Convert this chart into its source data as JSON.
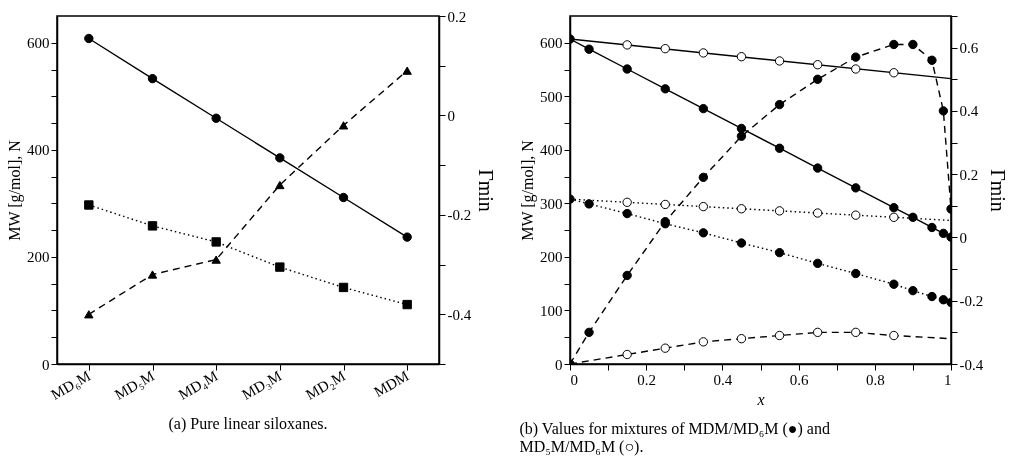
{
  "chart_data": [
    {
      "type": "line",
      "categories": [
        "MD₆M",
        "MD₅M",
        "MD₄M",
        "MD₃M",
        "MD₂M",
        "MDM"
      ],
      "ylabel": "MW [g/mol], N",
      "y2label": "Γmin",
      "ylim": [
        0,
        650
      ],
      "yticks": [
        0,
        {
          "value": 50,
          "label": null
        },
        200,
        {
          "value": 100,
          "label": null
        },
        {
          "value": 150,
          "label": null
        },
        {
          "value": 250,
          "label": null
        },
        {
          "value": 300,
          "label": null
        },
        {
          "value": 350,
          "label": null
        },
        400,
        {
          "value": 450,
          "label": null
        },
        {
          "value": 500,
          "label": null
        },
        {
          "value": 550,
          "label": null
        },
        600
      ],
      "y2lim": [
        -0.5,
        0.2
      ],
      "y2ticks": [
        {
          "value": -0.5,
          "label": null
        },
        -0.4,
        {
          "value": -0.3,
          "label": null
        },
        -0.2,
        {
          "value": -0.1,
          "label": null
        },
        0,
        {
          "value": 0.1,
          "label": null
        },
        0.2
      ],
      "grid": false,
      "annotations": [
        "(a) Pure linear siloxanes."
      ],
      "series": [
        {
          "color": "#000000",
          "marker": "circle",
          "line_style": "solid",
          "values": [
            608,
            533,
            459,
            385,
            311,
            237
          ]
        },
        {
          "color": "#000000",
          "marker": "square",
          "line_style": "dotted",
          "values": [
            297,
            258,
            228,
            181,
            143,
            111
          ]
        },
        {
          "color": "#000000",
          "marker": "triangle",
          "line_style": "dashed",
          "axis": "y2",
          "values": [
            -0.4,
            -0.32,
            -0.29,
            -0.14,
            -0.02,
            0.09
          ]
        }
      ]
    },
    {
      "type": "line",
      "xlabel": "x",
      "ylabel": "MW [g/mol], N",
      "y2label": "Γmin",
      "xlim": [
        0,
        1
      ],
      "xticks": [
        0,
        {
          "value": 0.1,
          "label": null
        },
        0.2,
        {
          "value": 0.3,
          "label": null
        },
        0.4,
        {
          "value": 0.5,
          "label": null
        },
        0.6,
        {
          "value": 0.7,
          "label": null
        },
        0.8,
        {
          "value": 0.9,
          "label": null
        },
        1
      ],
      "ylim": [
        0,
        650
      ],
      "yticks": [
        0,
        {
          "value": 50,
          "label": null
        },
        100,
        {
          "value": 150,
          "label": null
        },
        200,
        {
          "value": 250,
          "label": null
        },
        300,
        {
          "value": 350,
          "label": null
        },
        400,
        {
          "value": 450,
          "label": null
        },
        500,
        {
          "value": 550,
          "label": null
        },
        600
      ],
      "y2lim": [
        -0.4,
        0.7
      ],
      "y2ticks": [
        -0.4,
        {
          "value": -0.3,
          "label": null
        },
        -0.2,
        {
          "value": -0.1,
          "label": null
        },
        0,
        {
          "value": 0.1,
          "label": null
        },
        0.2,
        {
          "value": 0.3,
          "label": null
        },
        0.4,
        {
          "value": 0.5,
          "label": null
        },
        0.6,
        {
          "value": 0.7,
          "label": null
        }
      ],
      "grid": false,
      "annotations": [
        "(b) Values for mixtures of MDM/MD₆M (●) and MD₅M/MD₆M (○)."
      ],
      "series": [
        {
          "color": "#000000",
          "marker": "circle",
          "line_style": "solid",
          "x": [
            0,
            0.05,
            0.15,
            0.25,
            0.35,
            0.45,
            0.55,
            0.65,
            0.75,
            0.85,
            0.9,
            0.95,
            0.98,
            1
          ],
          "values": [
            607,
            588,
            551,
            514,
            477,
            440,
            403,
            366,
            329,
            292,
            274,
            255,
            244,
            237
          ]
        },
        {
          "color": "#000000",
          "marker": "none",
          "line_style": "solid",
          "x": [
            0,
            1
          ],
          "values": [
            607,
            533
          ]
        },
        {
          "type": "scatter",
          "color": "#ffffff",
          "marker": "circle",
          "x": [
            0.15,
            0.25,
            0.35,
            0.45,
            0.55,
            0.65,
            0.75,
            0.85
          ],
          "values": [
            596,
            589,
            581,
            574,
            566,
            559,
            551,
            544
          ]
        },
        {
          "color": "#000000",
          "marker": "circle",
          "line_style": "dotted",
          "x": [
            0,
            0.05,
            0.15,
            0.25,
            0.35,
            0.45,
            0.55,
            0.65,
            0.75,
            0.85,
            0.9,
            0.95,
            0.98,
            1
          ],
          "values": [
            308,
            299,
            281,
            262,
            245,
            226,
            208,
            188,
            169,
            149,
            137,
            126,
            120,
            115
          ]
        },
        {
          "color": "#000000",
          "marker": "none",
          "line_style": "dotted",
          "x": [
            0,
            0.15,
            0.25,
            0.35,
            0.45,
            0.55,
            0.65,
            0.75,
            0.85,
            1
          ],
          "values": [
            308,
            302,
            298,
            294,
            290,
            286,
            282,
            278,
            274,
            268
          ]
        },
        {
          "type": "scatter",
          "color": "#ffffff",
          "marker": "circle",
          "x": [
            0.15,
            0.25,
            0.35,
            0.45,
            0.55,
            0.65,
            0.75,
            0.85
          ],
          "values": [
            302,
            298,
            294,
            290,
            286,
            282,
            278,
            274
          ]
        },
        {
          "color": "#000000",
          "marker": "circle",
          "line_style": "dashed",
          "axis": "y2",
          "x": [
            0,
            0.05,
            0.15,
            0.25,
            0.35,
            0.45,
            0.55,
            0.65,
            0.75,
            0.85,
            0.9,
            0.95,
            0.98,
            1
          ],
          "values": [
            -0.4,
            -0.3,
            -0.12,
            0.05,
            0.19,
            0.32,
            0.42,
            0.5,
            0.57,
            0.61,
            0.61,
            0.56,
            0.4,
            0.09
          ]
        },
        {
          "color": "#000000",
          "marker": "none",
          "line_style": "dashed",
          "axis": "y2",
          "x": [
            0,
            0.15,
            0.25,
            0.35,
            0.45,
            0.55,
            0.65,
            0.75,
            0.85,
            1
          ],
          "values": [
            -0.4,
            -0.37,
            -0.35,
            -0.33,
            -0.32,
            -0.31,
            -0.3,
            -0.3,
            -0.31,
            -0.32
          ]
        },
        {
          "type": "scatter",
          "color": "#ffffff",
          "marker": "circle",
          "axis": "y2",
          "x": [
            0.15,
            0.25,
            0.35,
            0.45,
            0.55,
            0.65,
            0.75,
            0.85
          ],
          "values": [
            -0.37,
            -0.35,
            -0.33,
            -0.32,
            -0.31,
            -0.3,
            -0.3,
            -0.31
          ]
        }
      ]
    }
  ]
}
